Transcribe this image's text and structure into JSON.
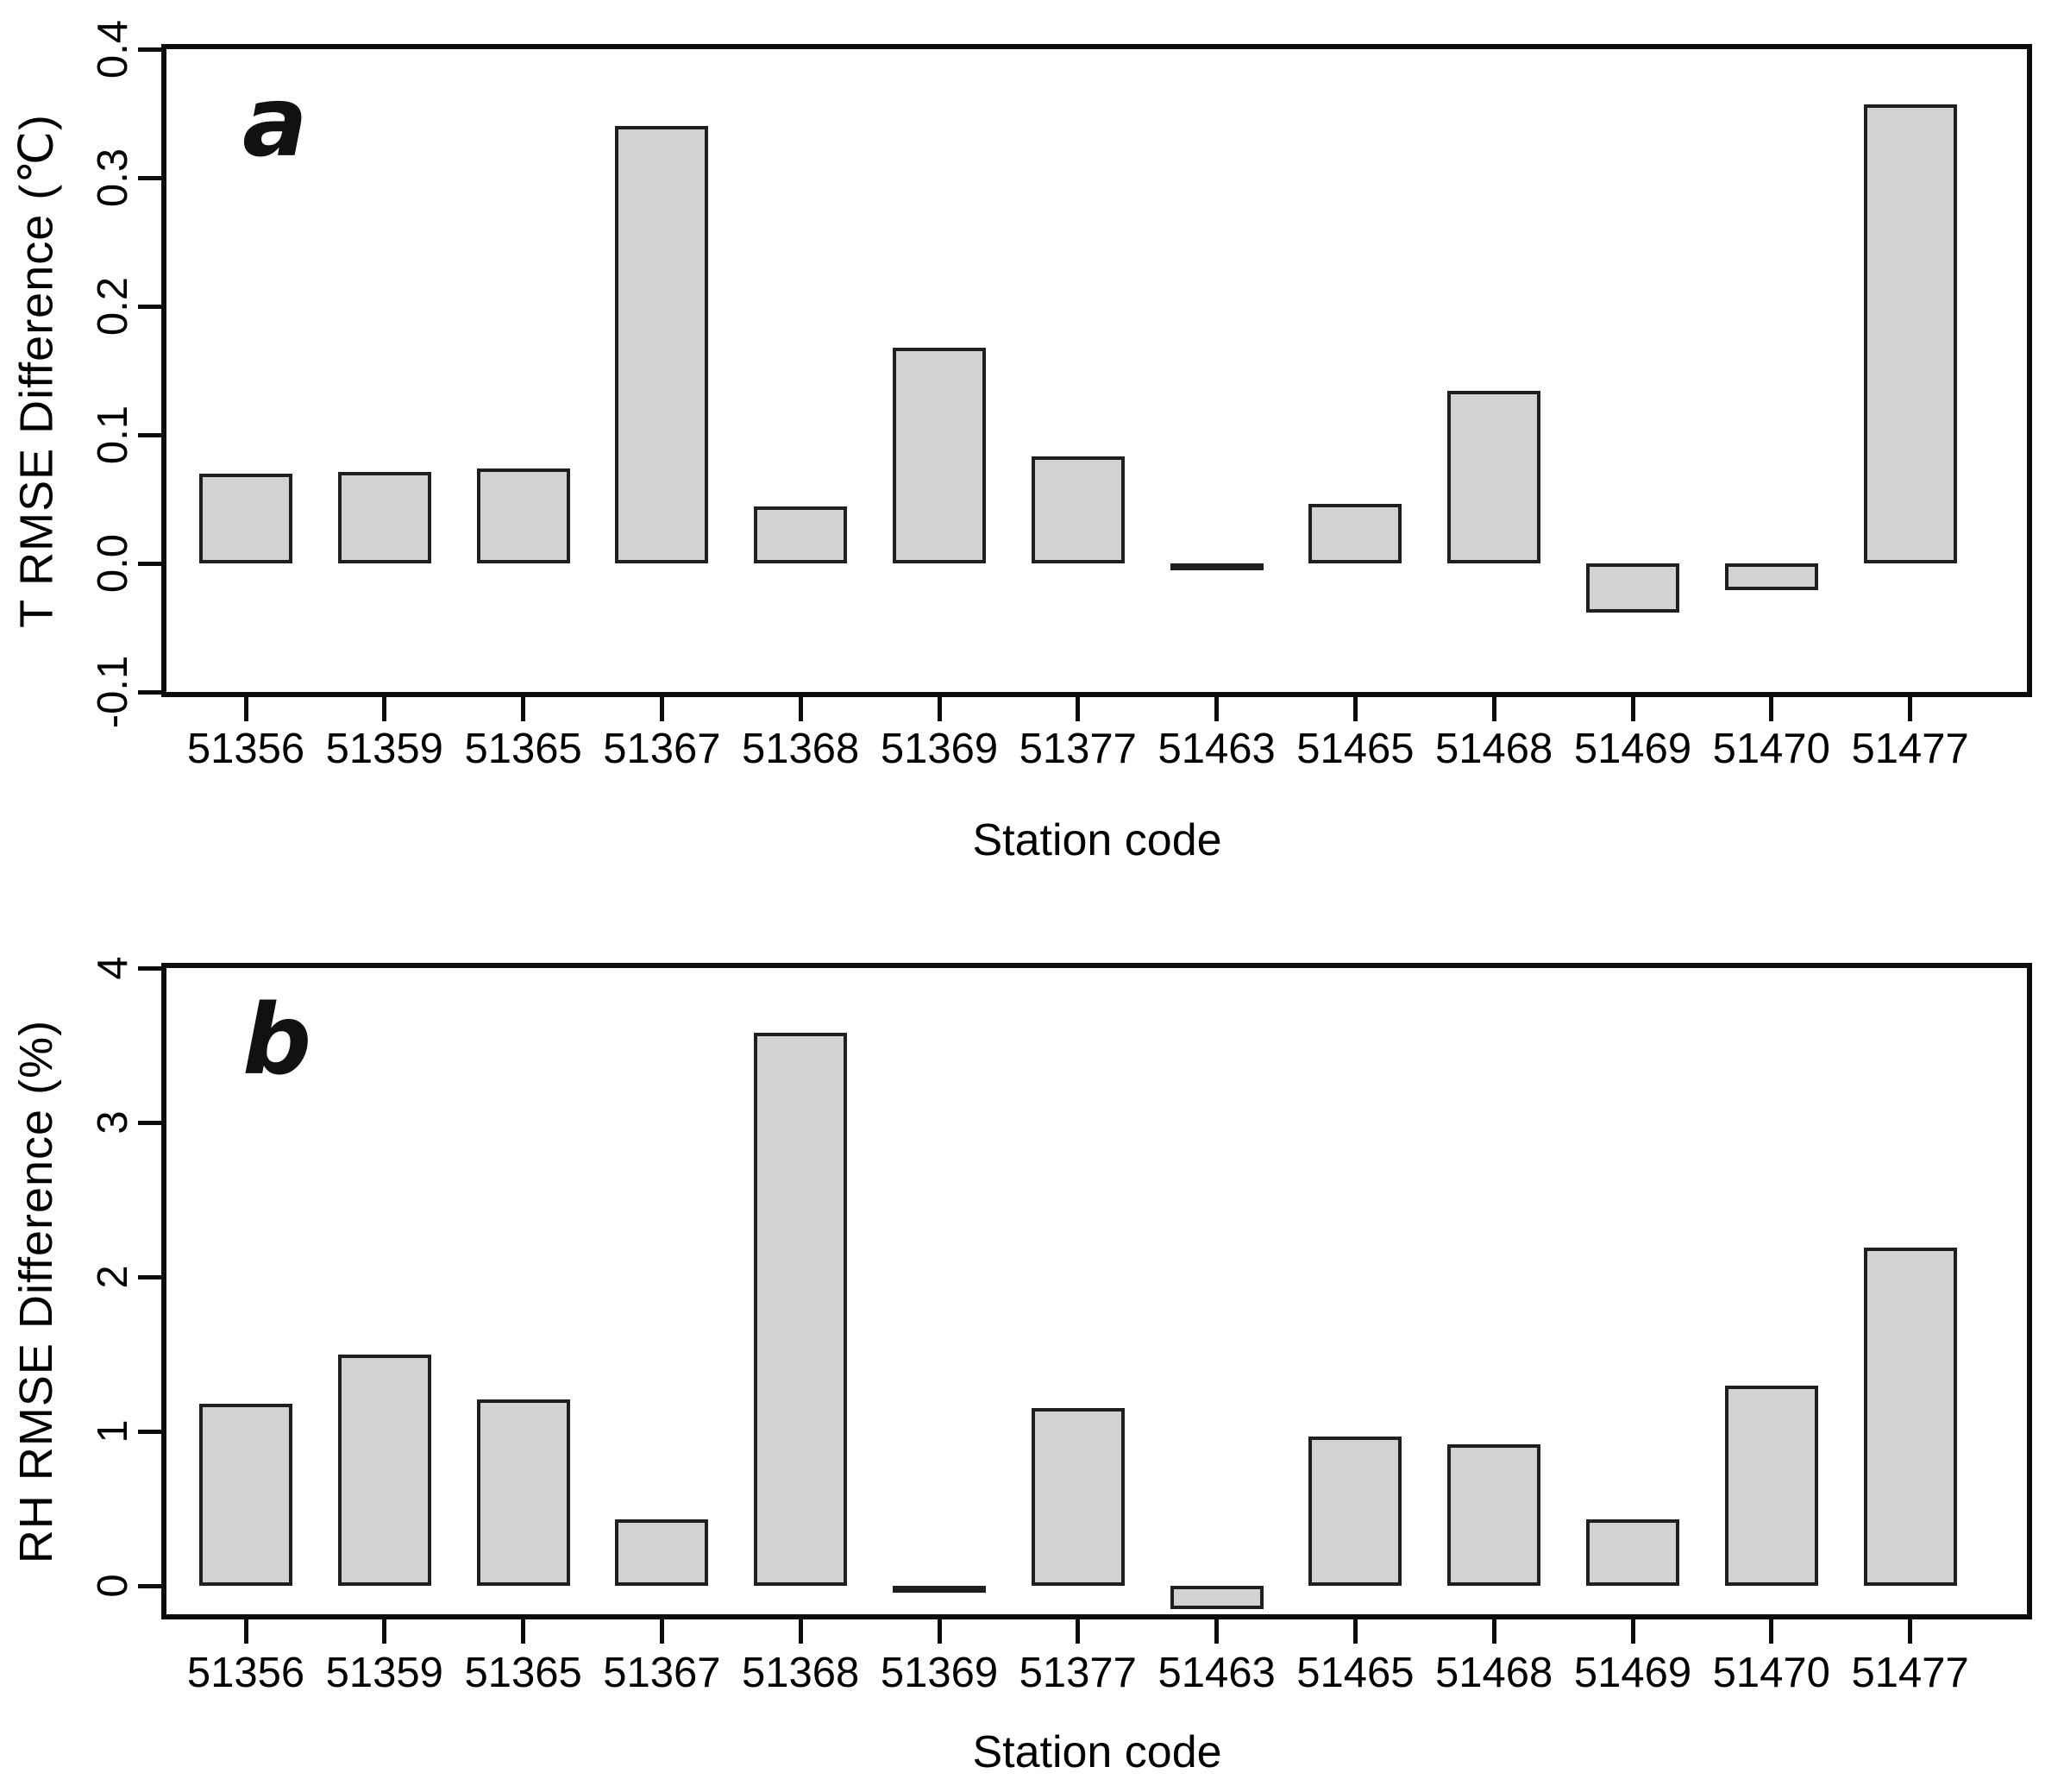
{
  "figure": {
    "background": "#ffffff",
    "text_color": "#000000",
    "axis_color": "#0d0d0d"
  },
  "chart_data": [
    {
      "type": "bar",
      "panel_label": "a",
      "title": "",
      "xlabel": "Station code",
      "ylabel": "T RMSE Difference (℃)",
      "categories": [
        "51356",
        "51359",
        "51365",
        "51367",
        "51368",
        "51369",
        "51377",
        "51463",
        "51465",
        "51468",
        "51469",
        "51470",
        "51477"
      ],
      "values": [
        0.07,
        0.071,
        0.074,
        0.34,
        0.044,
        0.168,
        0.083,
        -0.004,
        0.046,
        0.134,
        -0.038,
        -0.021,
        0.357
      ],
      "ylim": [
        -0.1,
        0.4
      ],
      "ytick_values": [
        0.4,
        0.3,
        0.2,
        0.1,
        0.0,
        -0.1
      ],
      "ytick_labels": [
        "0.4",
        "0.3",
        "0.2",
        "0.1",
        "0.0",
        "-0.1"
      ],
      "grid": false,
      "legend": null,
      "bar_fill": "#d2d2d2",
      "bar_stroke": "#1f1f1f"
    },
    {
      "type": "bar",
      "panel_label": "b",
      "title": "",
      "xlabel": "Station code",
      "ylabel": "RH RMSE Difference (%)",
      "categories": [
        "51356",
        "51359",
        "51365",
        "51367",
        "51368",
        "51369",
        "51377",
        "51463",
        "51465",
        "51468",
        "51469",
        "51470",
        "51477"
      ],
      "values": [
        1.18,
        1.5,
        1.21,
        0.43,
        3.58,
        -0.02,
        1.15,
        -0.15,
        0.97,
        0.92,
        0.43,
        1.3,
        2.19
      ],
      "ylim": [
        -0.18,
        4
      ],
      "ytick_values": [
        4,
        3,
        2,
        1,
        0
      ],
      "ytick_labels": [
        "4",
        "3",
        "2",
        "1",
        "0"
      ],
      "grid": false,
      "legend": null,
      "bar_fill": "#d2d2d2",
      "bar_stroke": "#1f1f1f"
    }
  ]
}
